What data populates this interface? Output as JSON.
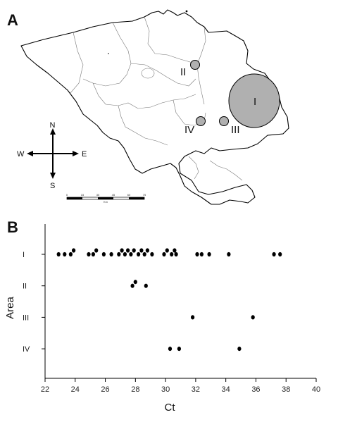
{
  "panels": {
    "map": {
      "letter": "A",
      "compass": {
        "n": "N",
        "s": "S",
        "e": "E",
        "w": "W"
      },
      "scale": {
        "ticks": [
          "0",
          "15",
          "30",
          "45",
          "60",
          "75"
        ],
        "unit": "Km"
      },
      "areas": [
        {
          "label": "I",
          "fill": "#b0b0b0"
        },
        {
          "label": "II",
          "fill": "#b0b0b0"
        },
        {
          "label": "III",
          "fill": "#b0b0b0"
        },
        {
          "label": "IV",
          "fill": "#b0b0b0"
        }
      ]
    },
    "plot": {
      "letter": "B"
    }
  },
  "chart_data": {
    "type": "scatter",
    "xlabel": "Ct",
    "ylabel": "Area",
    "xlim": [
      22,
      40
    ],
    "xticks": [
      22,
      24,
      26,
      28,
      30,
      32,
      34,
      36,
      38,
      40
    ],
    "categories": [
      "I",
      "II",
      "III",
      "IV"
    ],
    "grid": false,
    "marker_color": "#000000",
    "series": [
      {
        "category": "I",
        "x": [
          22.9,
          23.3,
          23.7,
          23.9,
          24.9,
          25.2,
          25.4,
          25.9,
          26.4,
          26.9,
          27.1,
          27.3,
          27.5,
          27.7,
          27.9,
          28.2,
          28.4,
          28.6,
          28.8,
          29.1,
          29.9,
          30.1,
          30.4,
          30.6,
          30.7,
          32.1,
          32.4,
          32.9,
          34.2,
          37.2,
          37.6
        ]
      },
      {
        "category": "II",
        "x": [
          27.8,
          28.0,
          28.7
        ]
      },
      {
        "category": "III",
        "x": [
          31.8,
          35.8
        ]
      },
      {
        "category": "IV",
        "x": [
          30.3,
          30.9,
          34.9
        ]
      }
    ]
  }
}
